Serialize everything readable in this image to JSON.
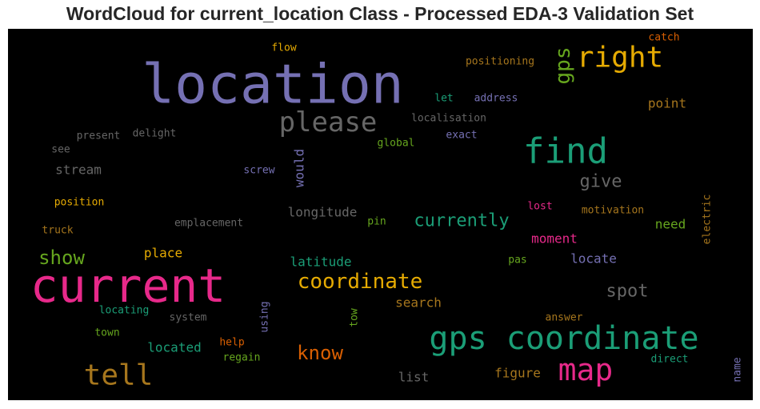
{
  "chart_data": {
    "type": "wordcloud",
    "title": "WordCloud for current_location Class - Processed EDA-3 Validation Set",
    "background": "#000000",
    "colormap": [
      "#7570b3",
      "#e7298a",
      "#1b9e77",
      "#e6ab02",
      "#a6761d",
      "#66a61e",
      "#d95f02",
      "#666666"
    ],
    "words": [
      {
        "text": "location",
        "color": "#7570b3"
      },
      {
        "text": "current",
        "color": "#e7298a"
      },
      {
        "text": "gps coordinate",
        "color": "#1b9e77"
      },
      {
        "text": "find",
        "color": "#1b9e77"
      },
      {
        "text": "right",
        "color": "#e6ab02"
      },
      {
        "text": "map",
        "color": "#e7298a"
      },
      {
        "text": "tell",
        "color": "#a6761d"
      },
      {
        "text": "please",
        "color": "#666666"
      },
      {
        "text": "coordinate",
        "color": "#e6ab02"
      },
      {
        "text": "gps",
        "color": "#66a61e"
      },
      {
        "text": "know",
        "color": "#d95f02"
      },
      {
        "text": "show",
        "color": "#66a61e"
      },
      {
        "text": "currently",
        "color": "#1b9e77"
      },
      {
        "text": "spot",
        "color": "#666666"
      },
      {
        "text": "give",
        "color": "#666666"
      },
      {
        "text": "longitude",
        "color": "#666666"
      },
      {
        "text": "search",
        "color": "#a6761d"
      },
      {
        "text": "point",
        "color": "#a6761d"
      },
      {
        "text": "place",
        "color": "#e6ab02"
      },
      {
        "text": "latitude",
        "color": "#1b9e77"
      },
      {
        "text": "located",
        "color": "#1b9e77"
      },
      {
        "text": "stream",
        "color": "#666666"
      },
      {
        "text": "figure",
        "color": "#a6761d"
      },
      {
        "text": "list",
        "color": "#666666"
      },
      {
        "text": "locate",
        "color": "#7570b3"
      },
      {
        "text": "moment",
        "color": "#e7298a"
      },
      {
        "text": "need",
        "color": "#66a61e"
      },
      {
        "text": "would",
        "color": "#7570b3"
      },
      {
        "text": "positioning",
        "color": "#a6761d"
      },
      {
        "text": "flow",
        "color": "#e6ab02"
      },
      {
        "text": "catch",
        "color": "#d95f02"
      },
      {
        "text": "let",
        "color": "#1b9e77"
      },
      {
        "text": "address",
        "color": "#7570b3"
      },
      {
        "text": "localisation",
        "color": "#666666"
      },
      {
        "text": "exact",
        "color": "#7570b3"
      },
      {
        "text": "global",
        "color": "#66a61e"
      },
      {
        "text": "present",
        "color": "#666666"
      },
      {
        "text": "delight",
        "color": "#666666"
      },
      {
        "text": "see",
        "color": "#666666"
      },
      {
        "text": "screw",
        "color": "#7570b3"
      },
      {
        "text": "position",
        "color": "#e6ab02"
      },
      {
        "text": "emplacement",
        "color": "#666666"
      },
      {
        "text": "truck",
        "color": "#a6761d"
      },
      {
        "text": "pin",
        "color": "#66a61e"
      },
      {
        "text": "lost",
        "color": "#e7298a"
      },
      {
        "text": "motivation",
        "color": "#a6761d"
      },
      {
        "text": "electric",
        "color": "#a6761d"
      },
      {
        "text": "pas",
        "color": "#66a61e"
      },
      {
        "text": "locating",
        "color": "#1b9e77"
      },
      {
        "text": "system",
        "color": "#666666"
      },
      {
        "text": "using",
        "color": "#7570b3"
      },
      {
        "text": "tow",
        "color": "#66a61e"
      },
      {
        "text": "answer",
        "color": "#a6761d"
      },
      {
        "text": "town",
        "color": "#66a61e"
      },
      {
        "text": "help",
        "color": "#d95f02"
      },
      {
        "text": "regain",
        "color": "#66a61e"
      },
      {
        "text": "direct",
        "color": "#1b9e77"
      },
      {
        "text": "name",
        "color": "#7570b3"
      }
    ]
  }
}
